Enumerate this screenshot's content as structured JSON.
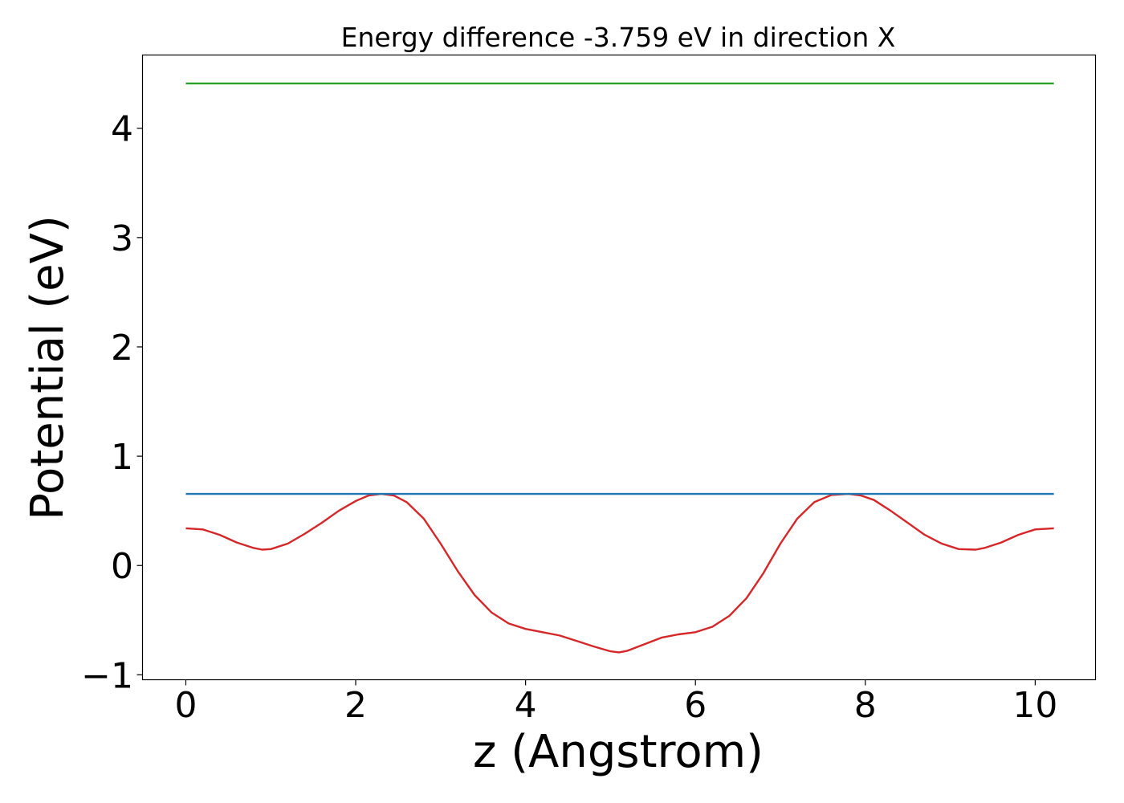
{
  "chart_data": {
    "type": "line",
    "title": "Energy difference -3.759 eV in direction X",
    "xlabel": "z (Angstrom)",
    "ylabel": "Potential (eV)",
    "xlim": [
      -0.51,
      10.71
    ],
    "ylim": [
      -1.045,
      4.67
    ],
    "xticks": [
      0,
      2,
      4,
      6,
      8,
      10
    ],
    "xtick_labels": [
      "0",
      "2",
      "4",
      "6",
      "8",
      "10"
    ],
    "yticks": [
      -1,
      0,
      1,
      2,
      3,
      4
    ],
    "ytick_labels": [
      "−1",
      "0",
      "1",
      "2",
      "3",
      "4"
    ],
    "grid": false,
    "series": [
      {
        "color": "#d62728",
        "x": [
          0.0,
          0.2,
          0.4,
          0.6,
          0.8,
          0.9,
          1.0,
          1.2,
          1.4,
          1.6,
          1.8,
          2.0,
          2.15,
          2.3,
          2.45,
          2.6,
          2.8,
          3.0,
          3.2,
          3.4,
          3.6,
          3.8,
          4.0,
          4.2,
          4.4,
          4.6,
          4.8,
          5.0,
          5.1,
          5.2,
          5.4,
          5.6,
          5.8,
          6.0,
          6.2,
          6.4,
          6.6,
          6.8,
          7.0,
          7.2,
          7.4,
          7.6,
          7.8,
          7.95,
          8.1,
          8.3,
          8.5,
          8.7,
          8.9,
          9.1,
          9.3,
          9.4,
          9.6,
          9.8,
          10.0,
          10.22
        ],
        "y": [
          0.34,
          0.33,
          0.28,
          0.21,
          0.16,
          0.145,
          0.15,
          0.2,
          0.29,
          0.39,
          0.5,
          0.59,
          0.64,
          0.655,
          0.64,
          0.58,
          0.43,
          0.2,
          -0.05,
          -0.27,
          -0.43,
          -0.53,
          -0.58,
          -0.61,
          -0.64,
          -0.69,
          -0.74,
          -0.785,
          -0.795,
          -0.78,
          -0.72,
          -0.66,
          -0.63,
          -0.61,
          -0.56,
          -0.46,
          -0.3,
          -0.07,
          0.2,
          0.43,
          0.58,
          0.645,
          0.655,
          0.64,
          0.6,
          0.5,
          0.39,
          0.28,
          0.2,
          0.15,
          0.145,
          0.16,
          0.21,
          0.28,
          0.33,
          0.34
        ]
      },
      {
        "color": "#1f77b4",
        "x": [
          0.0,
          10.22
        ],
        "y": [
          0.655,
          0.655
        ]
      },
      {
        "color": "#2ca02c",
        "x": [
          0.0,
          10.22
        ],
        "y": [
          4.41,
          4.41
        ]
      }
    ]
  }
}
